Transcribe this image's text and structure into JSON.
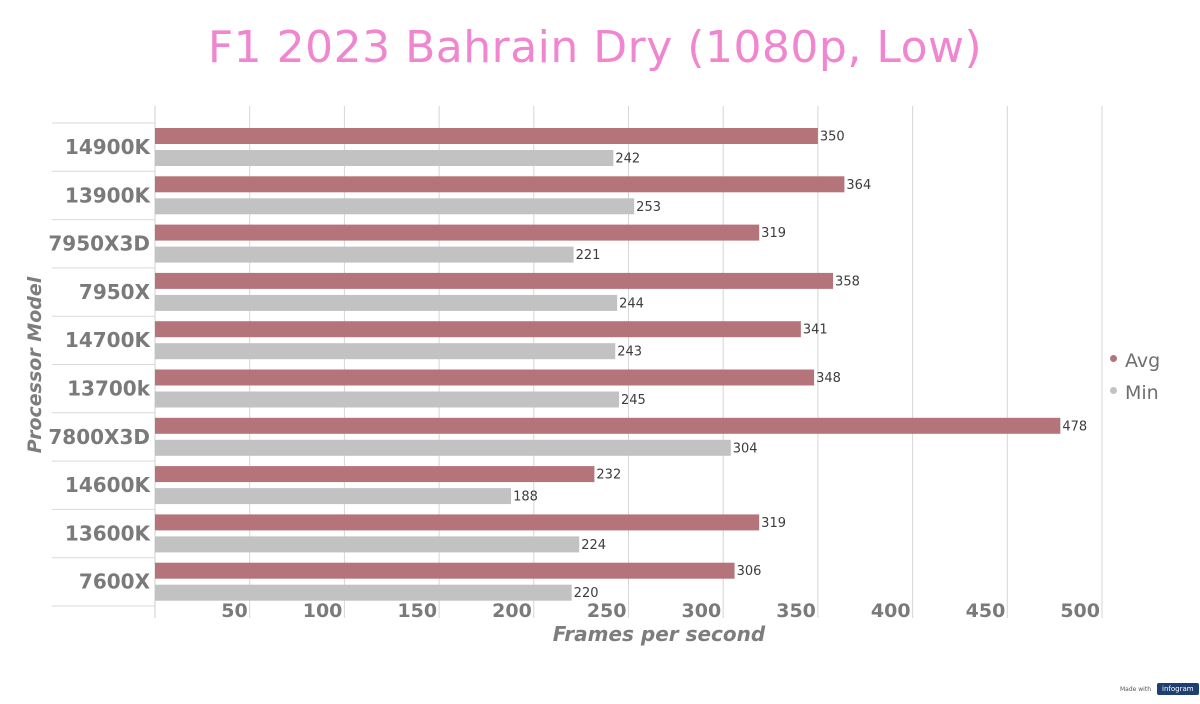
{
  "page": {
    "made_with": "Made with",
    "brand": "infogram"
  },
  "colors": {
    "avg": "#b5747a",
    "min": "#c2c2c2",
    "title": "#ef86cf",
    "grid": "#d6d6d6",
    "text": "#6f6f6f"
  },
  "chart_data": {
    "type": "bar",
    "orientation": "horizontal",
    "title": "F1 2023 Bahrain Dry (1080p, Low)",
    "xlabel": "Frames per second",
    "ylabel": "Processor Model",
    "categories": [
      "14900K",
      "13900K",
      "7950X3D",
      "7950X",
      "14700K",
      "13700k",
      "7800X3D",
      "14600K",
      "13600K",
      "7600X"
    ],
    "series": [
      {
        "name": "Avg",
        "values": [
          350,
          364,
          319,
          358,
          341,
          348,
          478,
          232,
          319,
          306
        ]
      },
      {
        "name": "Min",
        "values": [
          242,
          253,
          221,
          244,
          243,
          245,
          304,
          188,
          224,
          220
        ]
      }
    ],
    "xlim": [
      0,
      500
    ],
    "xticks": [
      "50",
      "100",
      "150",
      "200",
      "250",
      "300",
      "350",
      "400",
      "450",
      "500"
    ],
    "grid": true,
    "legend_position": "right"
  }
}
